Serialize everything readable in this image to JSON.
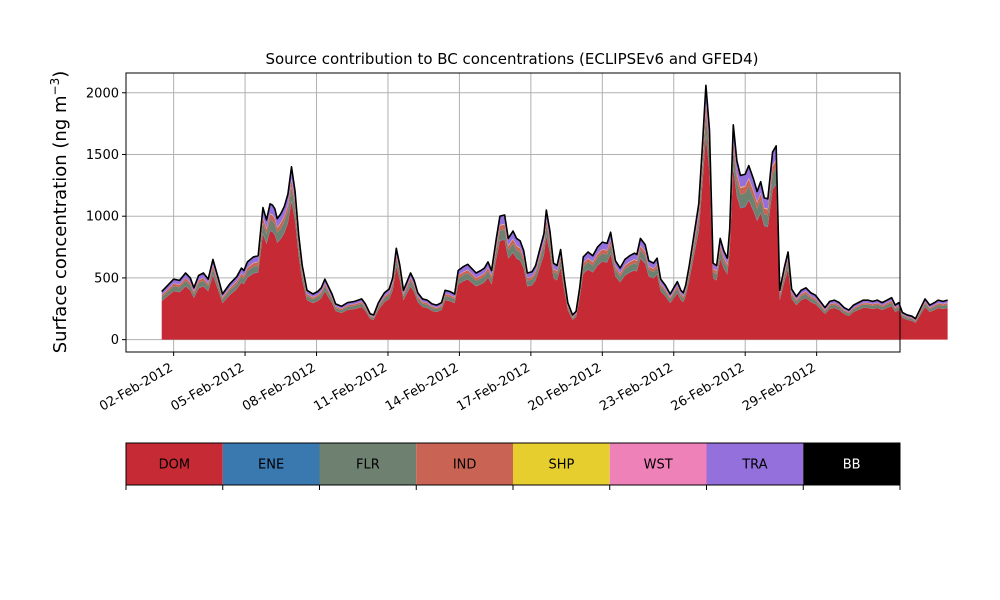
{
  "chart_data": {
    "type": "area",
    "title": "Source contribution to BC concentrations (ECLIPSEv6 and GFED4)",
    "ylabel": "Surface concentration (ng m⁻³)",
    "xlabel": "",
    "ylim": [
      -100,
      2160
    ],
    "yticks": [
      0,
      500,
      1000,
      1500,
      2000
    ],
    "x_start": "2012-02-01T12:00",
    "x_end": "2012-03-02T12:00",
    "xlim": [
      "2012-01-31T00:00",
      "2012-03-03T12:00"
    ],
    "xticks": [
      {
        "date": "2012-02-02",
        "label": "02-Feb-2012"
      },
      {
        "date": "2012-02-05",
        "label": "05-Feb-2012"
      },
      {
        "date": "2012-02-08",
        "label": "08-Feb-2012"
      },
      {
        "date": "2012-02-11",
        "label": "11-Feb-2012"
      },
      {
        "date": "2012-02-14",
        "label": "14-Feb-2012"
      },
      {
        "date": "2012-02-17",
        "label": "17-Feb-2012"
      },
      {
        "date": "2012-02-20",
        "label": "20-Feb-2012"
      },
      {
        "date": "2012-02-23",
        "label": "23-Feb-2012"
      },
      {
        "date": "2012-02-26",
        "label": "26-Feb-2012"
      },
      {
        "date": "2012-02-29",
        "label": "29-Feb-2012"
      }
    ],
    "grid": true,
    "total_line_color": "#000000",
    "total": [
      [
        0.0,
        390
      ],
      [
        0.5,
        490
      ],
      [
        0.75,
        480
      ],
      [
        1.0,
        540
      ],
      [
        1.2,
        500
      ],
      [
        1.35,
        420
      ],
      [
        1.55,
        520
      ],
      [
        1.75,
        540
      ],
      [
        1.95,
        490
      ],
      [
        2.15,
        650
      ],
      [
        2.4,
        480
      ],
      [
        2.55,
        370
      ],
      [
        2.85,
        450
      ],
      [
        3.15,
        510
      ],
      [
        3.35,
        580
      ],
      [
        3.45,
        560
      ],
      [
        3.6,
        630
      ],
      [
        3.85,
        670
      ],
      [
        4.05,
        680
      ],
      [
        4.25,
        1070
      ],
      [
        4.4,
        970
      ],
      [
        4.55,
        1100
      ],
      [
        4.65,
        1090
      ],
      [
        4.75,
        1060
      ],
      [
        4.85,
        980
      ],
      [
        5.0,
        1020
      ],
      [
        5.15,
        1080
      ],
      [
        5.3,
        1180
      ],
      [
        5.45,
        1400
      ],
      [
        5.6,
        1200
      ],
      [
        5.75,
        850
      ],
      [
        5.9,
        600
      ],
      [
        6.1,
        400
      ],
      [
        6.35,
        370
      ],
      [
        6.55,
        390
      ],
      [
        6.7,
        420
      ],
      [
        6.85,
        490
      ],
      [
        7.0,
        430
      ],
      [
        7.15,
        370
      ],
      [
        7.3,
        290
      ],
      [
        7.55,
        270
      ],
      [
        7.8,
        300
      ],
      [
        8.1,
        310
      ],
      [
        8.4,
        330
      ],
      [
        8.55,
        290
      ],
      [
        8.75,
        210
      ],
      [
        8.9,
        200
      ],
      [
        9.1,
        300
      ],
      [
        9.35,
        380
      ],
      [
        9.55,
        410
      ],
      [
        9.7,
        500
      ],
      [
        9.85,
        740
      ],
      [
        10.0,
        600
      ],
      [
        10.15,
        400
      ],
      [
        10.3,
        470
      ],
      [
        10.45,
        540
      ],
      [
        10.6,
        480
      ],
      [
        10.75,
        380
      ],
      [
        10.95,
        330
      ],
      [
        11.15,
        320
      ],
      [
        11.35,
        290
      ],
      [
        11.55,
        280
      ],
      [
        11.75,
        300
      ],
      [
        11.9,
        400
      ],
      [
        12.1,
        390
      ],
      [
        12.3,
        370
      ],
      [
        12.45,
        560
      ],
      [
        12.65,
        590
      ],
      [
        12.85,
        610
      ],
      [
        13.0,
        580
      ],
      [
        13.2,
        540
      ],
      [
        13.4,
        560
      ],
      [
        13.55,
        580
      ],
      [
        13.7,
        630
      ],
      [
        13.85,
        560
      ],
      [
        14.05,
        820
      ],
      [
        14.2,
        1000
      ],
      [
        14.4,
        1010
      ],
      [
        14.55,
        820
      ],
      [
        14.75,
        880
      ],
      [
        14.9,
        820
      ],
      [
        15.05,
        800
      ],
      [
        15.2,
        720
      ],
      [
        15.35,
        540
      ],
      [
        15.55,
        550
      ],
      [
        15.7,
        600
      ],
      [
        15.9,
        750
      ],
      [
        16.05,
        860
      ],
      [
        16.15,
        1050
      ],
      [
        16.3,
        880
      ],
      [
        16.45,
        620
      ],
      [
        16.6,
        600
      ],
      [
        16.75,
        730
      ],
      [
        16.9,
        500
      ],
      [
        17.05,
        300
      ],
      [
        17.25,
        200
      ],
      [
        17.4,
        230
      ],
      [
        17.55,
        420
      ],
      [
        17.7,
        670
      ],
      [
        17.9,
        710
      ],
      [
        18.1,
        680
      ],
      [
        18.3,
        750
      ],
      [
        18.5,
        790
      ],
      [
        18.7,
        780
      ],
      [
        18.85,
        870
      ],
      [
        19.05,
        640
      ],
      [
        19.25,
        580
      ],
      [
        19.45,
        650
      ],
      [
        19.65,
        680
      ],
      [
        19.85,
        700
      ],
      [
        19.95,
        690
      ],
      [
        20.1,
        820
      ],
      [
        20.3,
        770
      ],
      [
        20.45,
        640
      ],
      [
        20.65,
        620
      ],
      [
        20.8,
        660
      ],
      [
        20.95,
        490
      ],
      [
        21.15,
        440
      ],
      [
        21.35,
        370
      ],
      [
        21.5,
        420
      ],
      [
        21.65,
        470
      ],
      [
        21.8,
        400
      ],
      [
        21.9,
        380
      ],
      [
        22.0,
        440
      ],
      [
        22.15,
        600
      ],
      [
        22.35,
        850
      ],
      [
        22.55,
        1100
      ],
      [
        22.7,
        1560
      ],
      [
        22.85,
        2060
      ],
      [
        23.0,
        1700
      ],
      [
        23.15,
        620
      ],
      [
        23.3,
        600
      ],
      [
        23.45,
        820
      ],
      [
        23.6,
        720
      ],
      [
        23.75,
        660
      ],
      [
        23.85,
        900
      ],
      [
        24.0,
        1740
      ],
      [
        24.15,
        1450
      ],
      [
        24.3,
        1330
      ],
      [
        24.5,
        1340
      ],
      [
        24.65,
        1410
      ],
      [
        24.85,
        1300
      ],
      [
        25.0,
        1200
      ],
      [
        25.15,
        1280
      ],
      [
        25.3,
        1150
      ],
      [
        25.45,
        1140
      ],
      [
        25.65,
        1520
      ],
      [
        25.8,
        1570
      ],
      [
        25.95,
        400
      ],
      [
        26.15,
        590
      ],
      [
        26.3,
        710
      ],
      [
        26.45,
        410
      ],
      [
        26.65,
        350
      ],
      [
        26.85,
        400
      ],
      [
        27.05,
        420
      ],
      [
        27.25,
        380
      ],
      [
        27.45,
        360
      ],
      [
        27.65,
        310
      ],
      [
        27.85,
        260
      ],
      [
        28.05,
        310
      ],
      [
        28.25,
        320
      ],
      [
        28.45,
        300
      ],
      [
        28.65,
        260
      ],
      [
        28.85,
        240
      ],
      [
        29.05,
        280
      ],
      [
        29.25,
        300
      ],
      [
        29.45,
        320
      ],
      [
        29.65,
        320
      ],
      [
        29.85,
        310
      ],
      [
        30.05,
        320
      ],
      [
        30.25,
        300
      ],
      [
        30.45,
        320
      ],
      [
        30.65,
        340
      ],
      [
        30.8,
        280
      ],
      [
        30.95,
        300
      ],
      [
        31.1,
        220
      ],
      [
        31.3,
        200
      ],
      [
        31.5,
        190
      ],
      [
        31.65,
        170
      ],
      [
        31.85,
        250
      ],
      [
        32.05,
        330
      ],
      [
        32.25,
        280
      ],
      [
        32.45,
        300
      ],
      [
        32.6,
        320
      ],
      [
        32.8,
        310
      ],
      [
        33.0,
        320
      ]
    ],
    "series": [
      {
        "name": "DOM",
        "color": "#c62a35",
        "fraction": 0.8
      },
      {
        "name": "ENE",
        "color": "#3a78b0",
        "fraction": 0.004
      },
      {
        "name": "FLR",
        "color": "#6e8171",
        "fraction": 0.08
      },
      {
        "name": "IND",
        "color": "#c96455",
        "fraction": 0.04
      },
      {
        "name": "SHP",
        "color": "#e6ce2f",
        "fraction": 0.003
      },
      {
        "name": "WST",
        "color": "#ee82b8",
        "fraction": 0.003
      },
      {
        "name": "TRA",
        "color": "#9370db",
        "fraction": 0.07
      },
      {
        "name": "BB",
        "color": "#000000",
        "fraction": 0.0
      }
    ]
  },
  "legend": {
    "items": [
      {
        "label": "DOM",
        "color": "#c62a35",
        "text_color": "#000000"
      },
      {
        "label": "ENE",
        "color": "#3a78b0",
        "text_color": "#000000"
      },
      {
        "label": "FLR",
        "color": "#6e8171",
        "text_color": "#000000"
      },
      {
        "label": "IND",
        "color": "#c96455",
        "text_color": "#000000"
      },
      {
        "label": "SHP",
        "color": "#e6ce2f",
        "text_color": "#000000"
      },
      {
        "label": "WST",
        "color": "#ee82b8",
        "text_color": "#000000"
      },
      {
        "label": "TRA",
        "color": "#9370db",
        "text_color": "#000000"
      },
      {
        "label": "BB",
        "color": "#000000",
        "text_color": "#ffffff"
      }
    ]
  }
}
